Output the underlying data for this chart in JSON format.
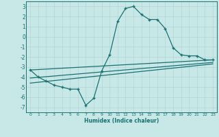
{
  "main_x": [
    0,
    1,
    2,
    3,
    4,
    5,
    6,
    7,
    8,
    9,
    10,
    11,
    12,
    13,
    14,
    15,
    16,
    17,
    18,
    19,
    20,
    21,
    22,
    23
  ],
  "main_y": [
    -3.3,
    -4.0,
    -4.4,
    -4.8,
    -5.0,
    -5.2,
    -5.2,
    -6.8,
    -6.1,
    -3.4,
    -1.8,
    1.5,
    2.8,
    3.0,
    2.2,
    1.7,
    1.7,
    0.8,
    -1.1,
    -1.8,
    -1.9,
    -1.9,
    -2.3,
    -2.3
  ],
  "line1_x": [
    0,
    23
  ],
  "line1_y": [
    -3.3,
    -2.3
  ],
  "line2_x": [
    0,
    23
  ],
  "line2_y": [
    -4.1,
    -2.55
  ],
  "line3_x": [
    0,
    23
  ],
  "line3_y": [
    -4.6,
    -2.7
  ],
  "color_main": "#1a7070",
  "bg_color": "#c8e8e8",
  "grid_color": "#b0d4d4",
  "xlabel": "Humidex (Indice chaleur)",
  "ylim": [
    -7.5,
    3.5
  ],
  "xlim": [
    -0.5,
    23.5
  ],
  "yticks": [
    3,
    2,
    1,
    0,
    -1,
    -2,
    -3,
    -4,
    -5,
    -6,
    -7
  ],
  "xticks": [
    0,
    1,
    2,
    3,
    4,
    5,
    6,
    7,
    8,
    9,
    10,
    11,
    12,
    13,
    14,
    15,
    16,
    17,
    18,
    19,
    20,
    21,
    22,
    23
  ]
}
